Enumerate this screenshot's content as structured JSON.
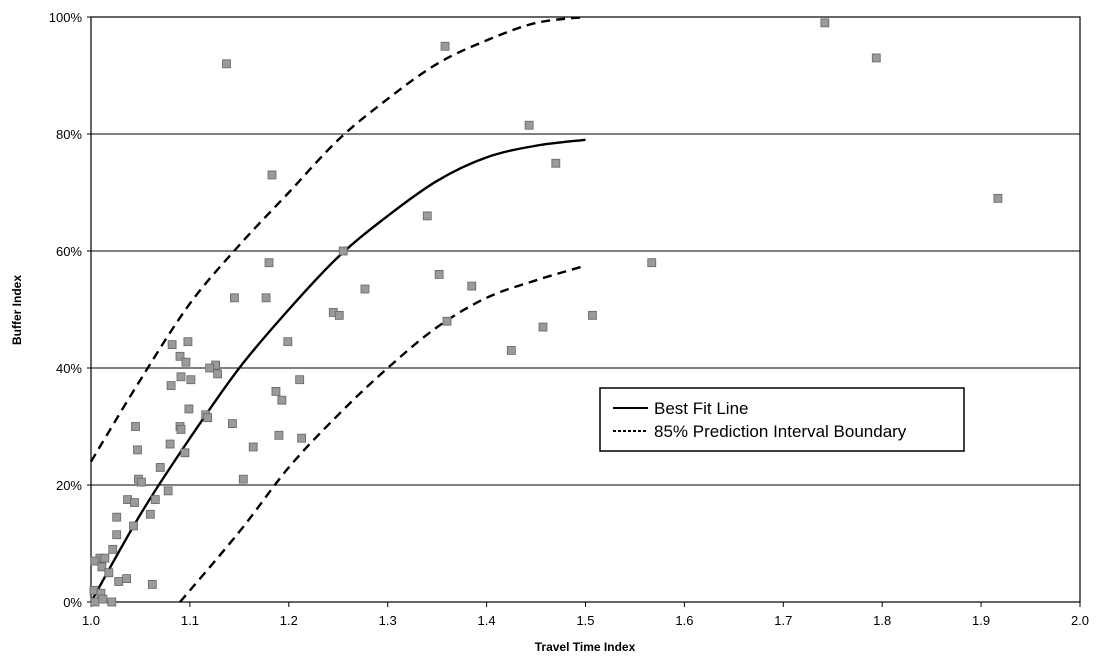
{
  "chart_data": {
    "type": "scatter",
    "title": "",
    "xlabel": "Travel Time Index",
    "ylabel": "Buffer Index",
    "xlim": [
      1.0,
      2.0
    ],
    "ylim": [
      0,
      100
    ],
    "x_ticks": [
      1.0,
      1.1,
      1.2,
      1.3,
      1.4,
      1.5,
      1.6,
      1.7,
      1.8,
      1.9,
      2.0
    ],
    "x_tick_labels": [
      "1.0",
      "1.1",
      "1.2",
      "1.3",
      "1.4",
      "1.5",
      "1.6",
      "1.7",
      "1.8",
      "1.9",
      "2.0"
    ],
    "y_ticks": [
      0,
      20,
      40,
      60,
      80,
      100
    ],
    "y_tick_labels": [
      "0%",
      "20%",
      "40%",
      "60%",
      "80%",
      "100%"
    ],
    "grid": "horizontal",
    "legend_position": "center-right",
    "colors": {
      "points": "#9a9a9a",
      "point_border": "#666666",
      "lines": "#000000",
      "grid": "#000000"
    },
    "series": [
      {
        "name": "",
        "kind": "scatter",
        "points": [
          [
            1.742,
            99
          ],
          [
            1.794,
            93
          ],
          [
            1.917,
            69
          ],
          [
            1.137,
            92
          ],
          [
            1.358,
            95
          ],
          [
            1.443,
            81.5
          ],
          [
            1.47,
            75
          ],
          [
            1.183,
            73
          ],
          [
            1.34,
            66
          ],
          [
            1.255,
            60
          ],
          [
            1.567,
            58
          ],
          [
            1.18,
            58
          ],
          [
            1.352,
            56
          ],
          [
            1.385,
            54
          ],
          [
            1.277,
            53.5
          ],
          [
            1.145,
            52
          ],
          [
            1.177,
            52
          ],
          [
            1.245,
            49.5
          ],
          [
            1.251,
            49
          ],
          [
            1.507,
            49
          ],
          [
            1.36,
            48
          ],
          [
            1.457,
            47
          ],
          [
            1.425,
            43
          ],
          [
            1.082,
            44
          ],
          [
            1.098,
            44.5
          ],
          [
            1.199,
            44.5
          ],
          [
            1.09,
            42
          ],
          [
            1.096,
            41
          ],
          [
            1.126,
            40.5
          ],
          [
            1.12,
            40
          ],
          [
            1.128,
            39
          ],
          [
            1.091,
            38.5
          ],
          [
            1.211,
            38
          ],
          [
            1.101,
            38
          ],
          [
            1.081,
            37
          ],
          [
            1.187,
            36
          ],
          [
            1.193,
            34.5
          ],
          [
            1.099,
            33
          ],
          [
            1.116,
            32
          ],
          [
            1.118,
            31.5
          ],
          [
            1.045,
            30
          ],
          [
            1.09,
            30
          ],
          [
            1.143,
            30.5
          ],
          [
            1.091,
            29.5
          ],
          [
            1.19,
            28.5
          ],
          [
            1.213,
            28
          ],
          [
            1.08,
            27
          ],
          [
            1.164,
            26.5
          ],
          [
            1.047,
            26
          ],
          [
            1.095,
            25.5
          ],
          [
            1.07,
            23
          ],
          [
            1.154,
            21
          ],
          [
            1.048,
            21
          ],
          [
            1.051,
            20.5
          ],
          [
            1.078,
            19
          ],
          [
            1.065,
            17.5
          ],
          [
            1.037,
            17.5
          ],
          [
            1.044,
            17
          ],
          [
            1.06,
            15
          ],
          [
            1.026,
            14.5
          ],
          [
            1.043,
            13
          ],
          [
            1.026,
            11.5
          ],
          [
            1.022,
            9
          ],
          [
            1.009,
            7.5
          ],
          [
            1.004,
            7
          ],
          [
            1.014,
            7.5
          ],
          [
            1.011,
            6
          ],
          [
            1.018,
            5
          ],
          [
            1.036,
            4
          ],
          [
            1.028,
            3.5
          ],
          [
            1.062,
            3
          ],
          [
            1.003,
            2
          ],
          [
            1.01,
            1.5
          ],
          [
            1.004,
            0
          ],
          [
            1.012,
            0.5
          ],
          [
            1.021,
            0
          ]
        ]
      },
      {
        "name": "Best Fit Line",
        "kind": "line",
        "style": "solid",
        "x": [
          1.0,
          1.05,
          1.1,
          1.15,
          1.2,
          1.25,
          1.3,
          1.35,
          1.4,
          1.45,
          1.5
        ],
        "y": [
          0,
          15,
          28,
          40,
          50,
          59,
          66,
          72,
          76,
          78,
          79
        ]
      },
      {
        "name": "85% Prediction Interval Boundary",
        "kind": "line",
        "style": "dashed",
        "x": [
          1.0,
          1.05,
          1.1,
          1.15,
          1.2,
          1.25,
          1.3,
          1.35,
          1.4,
          1.45,
          1.5
        ],
        "y": [
          24,
          38,
          51,
          61,
          70,
          79,
          86,
          92,
          96,
          99,
          100
        ]
      },
      {
        "name": "85% Prediction Interval Boundary (lower)",
        "kind": "line",
        "style": "dashed",
        "x": [
          1.09,
          1.15,
          1.2,
          1.25,
          1.3,
          1.35,
          1.4,
          1.45,
          1.5
        ],
        "y": [
          0,
          12,
          23,
          32,
          40,
          47,
          52,
          55,
          57.5
        ]
      }
    ],
    "legend": {
      "entries": [
        {
          "label": "Best Fit Line",
          "style": "solid"
        },
        {
          "label": "85% Prediction Interval Boundary",
          "style": "dashed"
        }
      ]
    }
  }
}
